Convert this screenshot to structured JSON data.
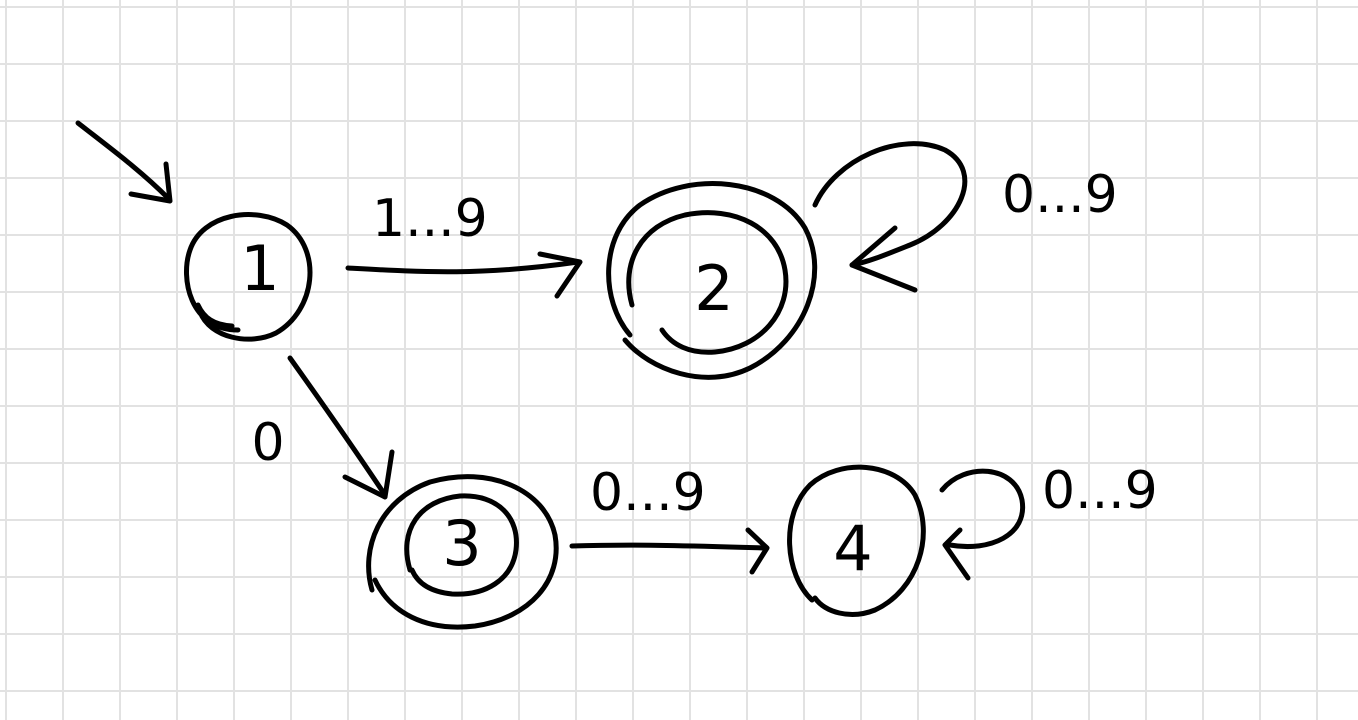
{
  "colors": {
    "background": "#ffffff",
    "grid": "#e2e2e2",
    "ink": "#000000"
  },
  "states": [
    {
      "id": "s1",
      "label": "1",
      "accepting": false,
      "initial": true
    },
    {
      "id": "s2",
      "label": "2",
      "accepting": true,
      "initial": false
    },
    {
      "id": "s3",
      "label": "3",
      "accepting": true,
      "initial": false
    },
    {
      "id": "s4",
      "label": "4",
      "accepting": false,
      "initial": false
    }
  ],
  "transitions": [
    {
      "from": "1",
      "to": "2",
      "label": "1...9"
    },
    {
      "from": "2",
      "to": "2",
      "label": "0...9"
    },
    {
      "from": "1",
      "to": "3",
      "label": "0"
    },
    {
      "from": "3",
      "to": "4",
      "label": "0...9"
    },
    {
      "from": "4",
      "to": "4",
      "label": "0...9"
    }
  ]
}
